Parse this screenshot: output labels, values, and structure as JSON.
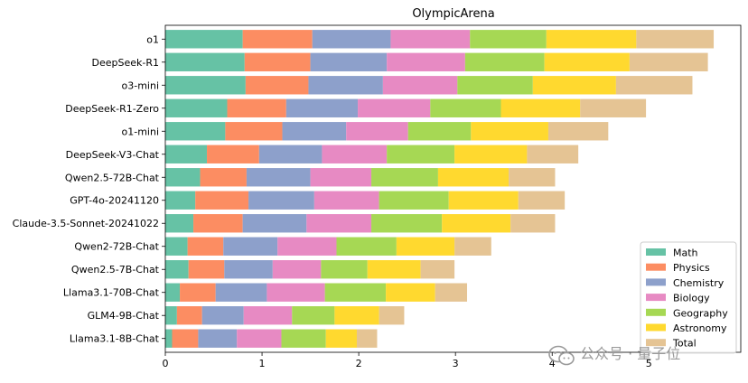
{
  "chart_data": {
    "type": "bar",
    "orientation": "horizontal",
    "stacked": true,
    "title": "OlympicArena",
    "xlabel": "",
    "ylabel": "",
    "xlim": [
      0,
      5.95
    ],
    "xticks": [
      0,
      1,
      2,
      3,
      4,
      5
    ],
    "grid": false,
    "legend_position": "bottom-right",
    "categories": [
      "o1",
      "DeepSeek-R1",
      "o3-mini",
      "DeepSeek-R1-Zero",
      "o1-mini",
      "DeepSeek-V3-Chat",
      "Qwen2.5-72B-Chat",
      "GPT-4o-20241120",
      "Claude-3.5-Sonnet-20241022",
      "Qwen2-72B-Chat",
      "Qwen2.5-7B-Chat",
      "Llama3.1-70B-Chat",
      "GLM4-9B-Chat",
      "Llama3.1-8B-Chat"
    ],
    "series": [
      {
        "name": "Math",
        "color": "#66c2a5",
        "values": [
          0.8,
          0.82,
          0.83,
          0.64,
          0.62,
          0.43,
          0.36,
          0.31,
          0.29,
          0.23,
          0.24,
          0.15,
          0.12,
          0.07
        ]
      },
      {
        "name": "Physics",
        "color": "#fc8d62",
        "values": [
          0.72,
          0.68,
          0.65,
          0.61,
          0.59,
          0.54,
          0.48,
          0.55,
          0.51,
          0.37,
          0.37,
          0.37,
          0.26,
          0.27
        ]
      },
      {
        "name": "Chemistry",
        "color": "#8da0cb",
        "values": [
          0.81,
          0.79,
          0.77,
          0.74,
          0.66,
          0.65,
          0.66,
          0.68,
          0.66,
          0.56,
          0.5,
          0.53,
          0.43,
          0.4
        ]
      },
      {
        "name": "Biology",
        "color": "#e78ac3",
        "values": [
          0.82,
          0.81,
          0.77,
          0.75,
          0.64,
          0.67,
          0.63,
          0.67,
          0.67,
          0.61,
          0.5,
          0.6,
          0.5,
          0.46
        ]
      },
      {
        "name": "Geography",
        "color": "#a6d854",
        "values": [
          0.79,
          0.82,
          0.78,
          0.73,
          0.65,
          0.7,
          0.69,
          0.72,
          0.73,
          0.62,
          0.48,
          0.63,
          0.44,
          0.46
        ]
      },
      {
        "name": "Astronomy",
        "color": "#ffd92f",
        "values": [
          0.93,
          0.88,
          0.86,
          0.82,
          0.8,
          0.75,
          0.73,
          0.72,
          0.71,
          0.6,
          0.55,
          0.51,
          0.46,
          0.32
        ]
      },
      {
        "name": "Total",
        "color": "#e5c494",
        "values": [
          0.8,
          0.81,
          0.79,
          0.68,
          0.62,
          0.53,
          0.48,
          0.48,
          0.46,
          0.38,
          0.35,
          0.33,
          0.26,
          0.21
        ]
      }
    ]
  },
  "watermark": {
    "icon": "wechat-icon",
    "text": "公众号 · 量子位"
  }
}
